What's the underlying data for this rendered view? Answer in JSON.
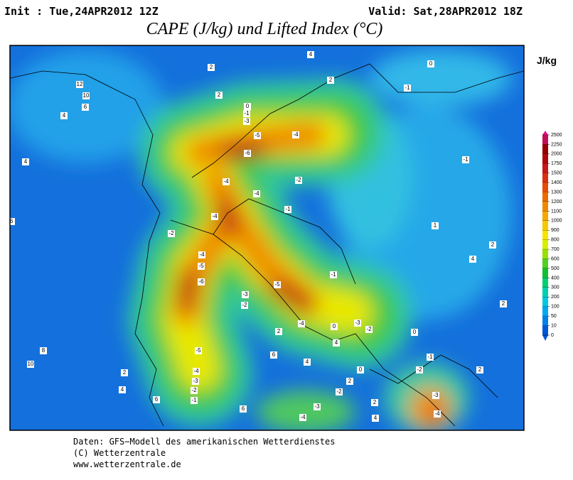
{
  "header": {
    "init": "Init : Tue,24APR2012 12Z",
    "valid": "Valid: Sat,28APR2012 18Z",
    "title": "CAPE (J/kg) und Lifted Index (°C)"
  },
  "legend": {
    "title": "J/kg",
    "ticks": [
      2500,
      2250,
      2000,
      1750,
      1500,
      1400,
      1300,
      1200,
      1100,
      1000,
      900,
      800,
      700,
      600,
      500,
      400,
      300,
      200,
      100,
      50,
      10,
      0
    ],
    "colors": [
      "#e8108c",
      "#c0105a",
      "#960000",
      "#b00808",
      "#c81818",
      "#d83010",
      "#e44c08",
      "#ec6a00",
      "#f08800",
      "#f4a800",
      "#f8c800",
      "#f8e400",
      "#d8f000",
      "#98e000",
      "#50d020",
      "#10c030",
      "#00d070",
      "#00d0b0",
      "#00c8e0",
      "#00a8f0",
      "#0080e8",
      "#0058d8"
    ]
  },
  "map": {
    "labels": [
      2,
      4,
      12,
      10,
      6,
      4,
      2,
      2,
      0,
      -1,
      0,
      -1,
      -3,
      -5,
      -4,
      -6,
      -4,
      -4,
      -2,
      -1,
      -4,
      -2,
      -4,
      -5,
      -6,
      -3,
      -5,
      -2,
      -4,
      -3,
      -2,
      -1,
      0,
      0,
      -5,
      -4,
      -3,
      -2,
      -1,
      4,
      6,
      8,
      10,
      2,
      4,
      6,
      6,
      6,
      4,
      2,
      4,
      2,
      -2,
      -3,
      -4,
      0,
      2,
      4,
      -2,
      -1,
      -3,
      -4,
      -1,
      1,
      4,
      2,
      2,
      2
    ]
  },
  "footer": {
    "lines": [
      "Daten: GFS−Modell des amerikanischen Wetterdienstes",
      "(C) Wetterzentrale",
      "www.wetterzentrale.de"
    ]
  }
}
